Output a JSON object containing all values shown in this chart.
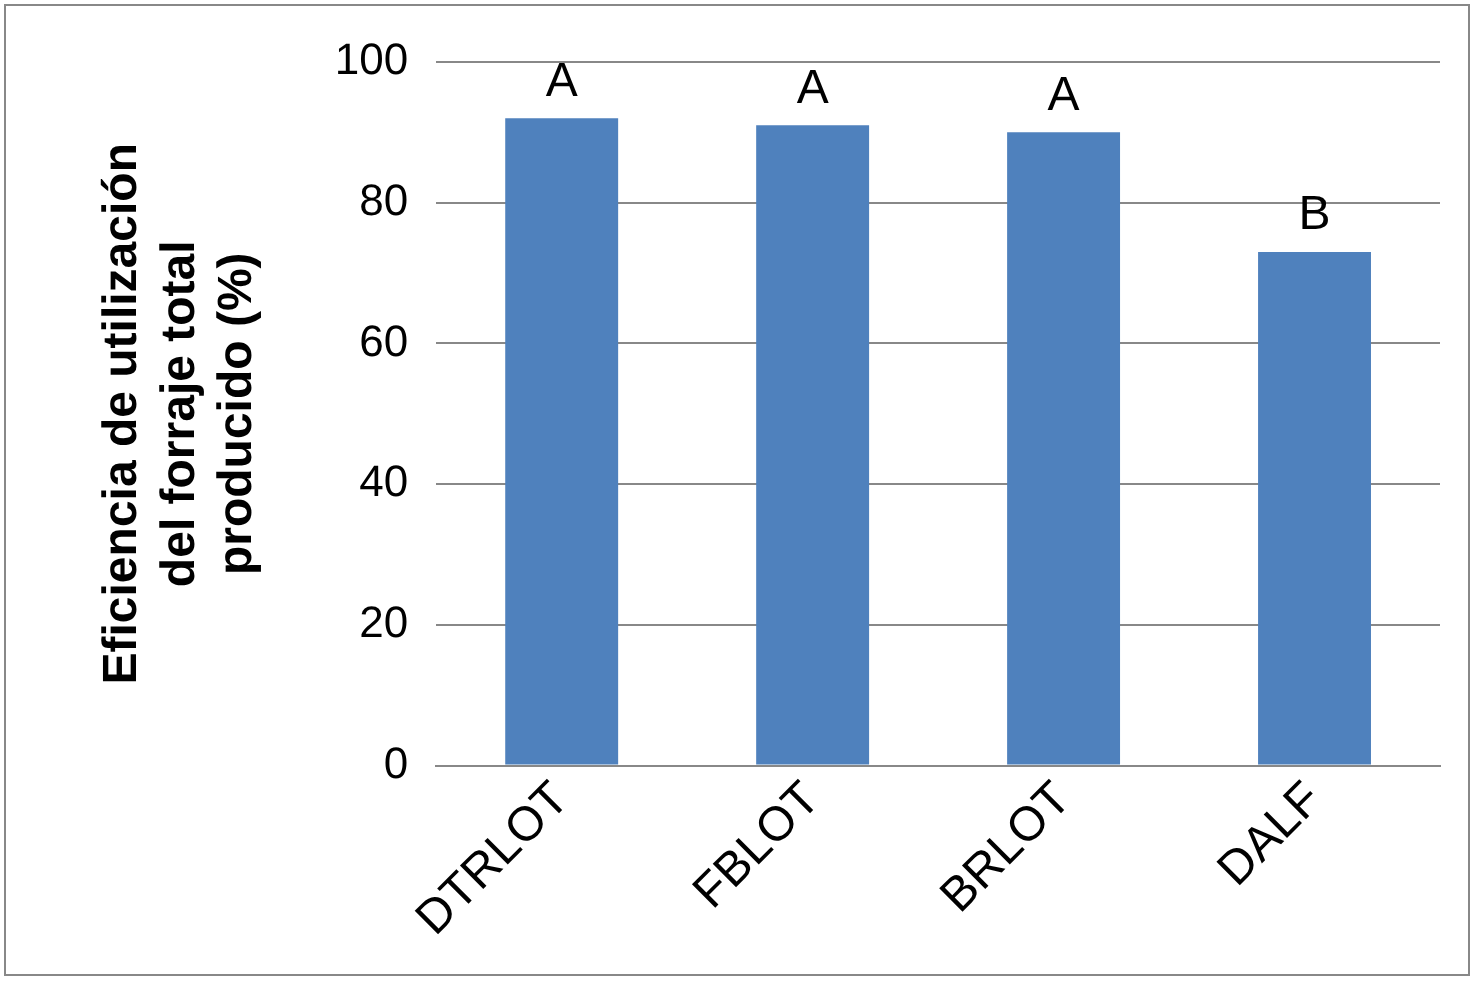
{
  "chart_data": {
    "type": "bar",
    "ylabel": "Eficiencia de utilización\ndel forraje total\nproducido (%)",
    "categories": [
      "DTRLOT",
      "FBLOT",
      "BRLOT",
      "DALF"
    ],
    "values": [
      92,
      91,
      90,
      73
    ],
    "color": "#4f81bd",
    "ylim": [
      0,
      100
    ],
    "yticks": [
      0,
      20,
      40,
      60,
      80,
      100
    ],
    "grid": "y",
    "legend": false,
    "annotations": [
      {
        "text": "A",
        "x": "DTRLOT",
        "y": 92
      },
      {
        "text": "A",
        "x": "FBLOT",
        "y": 91
      },
      {
        "text": "A",
        "x": "BRLOT",
        "y": 90
      },
      {
        "text": "B",
        "x": "DALF",
        "y": 73
      }
    ]
  }
}
